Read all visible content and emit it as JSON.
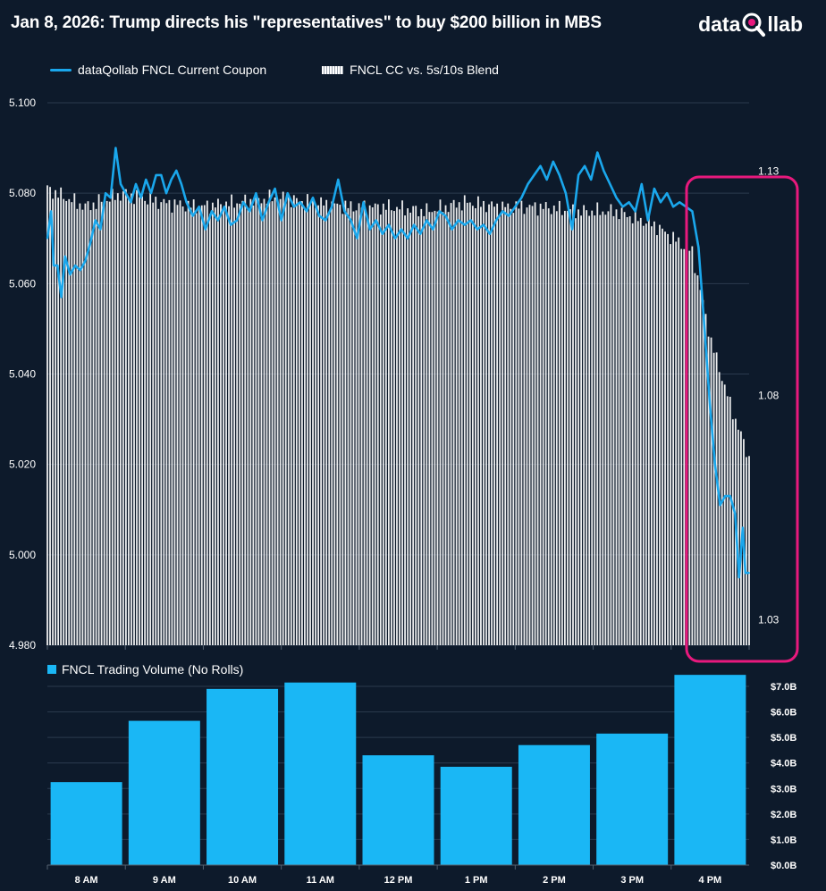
{
  "title": "Jan 8, 2026: Trump directs his \"representatives\" to buy $200 billion in MBS",
  "logo": {
    "left": "data",
    "right": "llab"
  },
  "legend": {
    "series1": "dataQollab FNCL Current Coupon",
    "series2": "FNCL CC vs. 5s/10s Blend",
    "volume": "FNCL Trading Volume (No Rolls)"
  },
  "colors": {
    "background": "#0d1a2b",
    "line": "#1aa7ec",
    "volume": "#1ab7f5",
    "highlight": "#e8197d",
    "bars": "#ffffff"
  },
  "chart_data": [
    {
      "type": "line",
      "series": [
        {
          "name": "dataQollab FNCL Current Coupon",
          "points": [
            [
              "07:30",
              5.07
            ],
            [
              "07:33",
              5.076
            ],
            [
              "07:35",
              5.064
            ],
            [
              "07:38",
              5.064
            ],
            [
              "07:41",
              5.057
            ],
            [
              "07:44",
              5.066
            ],
            [
              "07:48",
              5.062
            ],
            [
              "07:52",
              5.064
            ],
            [
              "07:56",
              5.063
            ],
            [
              "08:00",
              5.065
            ],
            [
              "08:04",
              5.069
            ],
            [
              "08:08",
              5.074
            ],
            [
              "08:12",
              5.072
            ],
            [
              "08:16",
              5.08
            ],
            [
              "08:20",
              5.079
            ],
            [
              "08:24",
              5.09
            ],
            [
              "08:28",
              5.082
            ],
            [
              "08:32",
              5.08
            ],
            [
              "08:36",
              5.078
            ],
            [
              "08:40",
              5.082
            ],
            [
              "08:44",
              5.079
            ],
            [
              "08:48",
              5.083
            ],
            [
              "08:52",
              5.08
            ],
            [
              "08:56",
              5.084
            ],
            [
              "09:00",
              5.084
            ],
            [
              "09:04",
              5.08
            ],
            [
              "09:08",
              5.083
            ],
            [
              "09:12",
              5.085
            ],
            [
              "09:16",
              5.082
            ],
            [
              "09:20",
              5.078
            ],
            [
              "09:25",
              5.075
            ],
            [
              "09:30",
              5.077
            ],
            [
              "09:35",
              5.072
            ],
            [
              "09:40",
              5.076
            ],
            [
              "09:45",
              5.074
            ],
            [
              "09:50",
              5.077
            ],
            [
              "09:55",
              5.073
            ],
            [
              "10:00",
              5.074
            ],
            [
              "10:05",
              5.078
            ],
            [
              "10:10",
              5.076
            ],
            [
              "10:15",
              5.08
            ],
            [
              "10:20",
              5.074
            ],
            [
              "10:25",
              5.078
            ],
            [
              "10:30",
              5.081
            ],
            [
              "10:35",
              5.074
            ],
            [
              "10:40",
              5.08
            ],
            [
              "10:45",
              5.077
            ],
            [
              "10:50",
              5.078
            ],
            [
              "10:55",
              5.076
            ],
            [
              "11:00",
              5.079
            ],
            [
              "11:05",
              5.075
            ],
            [
              "11:10",
              5.074
            ],
            [
              "11:15",
              5.077
            ],
            [
              "11:20",
              5.083
            ],
            [
              "11:25",
              5.076
            ],
            [
              "11:30",
              5.074
            ],
            [
              "11:35",
              5.07
            ],
            [
              "11:40",
              5.078
            ],
            [
              "11:45",
              5.072
            ],
            [
              "11:50",
              5.074
            ],
            [
              "11:55",
              5.071
            ],
            [
              "12:00",
              5.073
            ],
            [
              "12:05",
              5.07
            ],
            [
              "12:10",
              5.072
            ],
            [
              "12:15",
              5.07
            ],
            [
              "12:20",
              5.073
            ],
            [
              "12:25",
              5.071
            ],
            [
              "12:30",
              5.074
            ],
            [
              "12:35",
              5.072
            ],
            [
              "12:40",
              5.076
            ],
            [
              "12:45",
              5.075
            ],
            [
              "12:50",
              5.072
            ],
            [
              "12:55",
              5.074
            ],
            [
              "13:00",
              5.073
            ],
            [
              "13:05",
              5.074
            ],
            [
              "13:10",
              5.072
            ],
            [
              "13:15",
              5.073
            ],
            [
              "13:20",
              5.071
            ],
            [
              "13:25",
              5.074
            ],
            [
              "13:30",
              5.076
            ],
            [
              "13:35",
              5.075
            ],
            [
              "13:40",
              5.077
            ],
            [
              "13:45",
              5.079
            ],
            [
              "13:50",
              5.082
            ],
            [
              "13:55",
              5.084
            ],
            [
              "14:00",
              5.086
            ],
            [
              "14:05",
              5.083
            ],
            [
              "14:10",
              5.087
            ],
            [
              "14:15",
              5.084
            ],
            [
              "14:20",
              5.08
            ],
            [
              "14:25",
              5.072
            ],
            [
              "14:30",
              5.084
            ],
            [
              "14:35",
              5.086
            ],
            [
              "14:40",
              5.083
            ],
            [
              "14:45",
              5.089
            ],
            [
              "14:50",
              5.085
            ],
            [
              "14:55",
              5.082
            ],
            [
              "15:00",
              5.079
            ],
            [
              "15:05",
              5.077
            ],
            [
              "15:10",
              5.078
            ],
            [
              "15:15",
              5.076
            ],
            [
              "15:20",
              5.082
            ],
            [
              "15:25",
              5.074
            ],
            [
              "15:30",
              5.081
            ],
            [
              "15:35",
              5.078
            ],
            [
              "15:40",
              5.08
            ],
            [
              "15:45",
              5.077
            ],
            [
              "15:50",
              5.078
            ],
            [
              "15:55",
              5.077
            ],
            [
              "16:00",
              5.076
            ],
            [
              "16:05",
              5.068
            ],
            [
              "16:10",
              5.049
            ],
            [
              "16:14",
              5.033
            ],
            [
              "16:18",
              5.02
            ],
            [
              "16:22",
              5.011
            ],
            [
              "16:26",
              5.013
            ],
            [
              "16:30",
              5.013
            ],
            [
              "16:34",
              5.009
            ],
            [
              "16:37",
              4.995
            ],
            [
              "16:40",
              5.006
            ],
            [
              "16:42",
              4.996
            ],
            [
              "16:45",
              4.996
            ]
          ]
        }
      ],
      "x_range": [
        "07:30",
        "16:45"
      ],
      "yaxis": {
        "ticks": [
          "5.100",
          "5.080",
          "5.060",
          "5.040",
          "5.020",
          "5.000",
          "4.980"
        ],
        "range": [
          4.98,
          5.1
        ]
      },
      "grid": true
    },
    {
      "type": "bar",
      "name": "FNCL CC vs. 5s/10s Blend",
      "yaxis_right": {
        "ticks": [
          "1.13",
          "1.08",
          "1.03"
        ],
        "range": [
          1.0243,
          1.1452
        ]
      },
      "levels": [
        [
          "07:30",
          1.126
        ],
        [
          "08:00",
          1.122
        ],
        [
          "08:30",
          1.125
        ],
        [
          "09:00",
          1.123
        ],
        [
          "09:30",
          1.122
        ],
        [
          "10:00",
          1.123
        ],
        [
          "10:30",
          1.124
        ],
        [
          "11:00",
          1.123
        ],
        [
          "11:30",
          1.122
        ],
        [
          "12:00",
          1.122
        ],
        [
          "12:30",
          1.121
        ],
        [
          "13:00",
          1.123
        ],
        [
          "13:30",
          1.122
        ],
        [
          "14:00",
          1.122
        ],
        [
          "14:30",
          1.121
        ],
        [
          "15:00",
          1.121
        ],
        [
          "15:30",
          1.118
        ],
        [
          "16:00",
          1.112
        ],
        [
          "16:15",
          1.092
        ],
        [
          "16:30",
          1.078
        ],
        [
          "16:45",
          1.066
        ]
      ]
    },
    {
      "type": "bar",
      "name": "FNCL Trading Volume (No Rolls)",
      "categories": [
        "8 AM",
        "9 AM",
        "10 AM",
        "11 AM",
        "12 PM",
        "1 PM",
        "2 PM",
        "3 PM",
        "4 PM"
      ],
      "values": [
        3.25,
        5.65,
        6.9,
        7.15,
        4.3,
        3.85,
        4.7,
        5.15,
        7.45
      ],
      "yaxis_right": {
        "ticks": [
          "$7.0B",
          "$6.0B",
          "$5.0B",
          "$4.0B",
          "$3.0B",
          "$2.0B",
          "$1.0B",
          "$0.0B"
        ],
        "range": [
          0,
          7.0
        ]
      }
    }
  ]
}
